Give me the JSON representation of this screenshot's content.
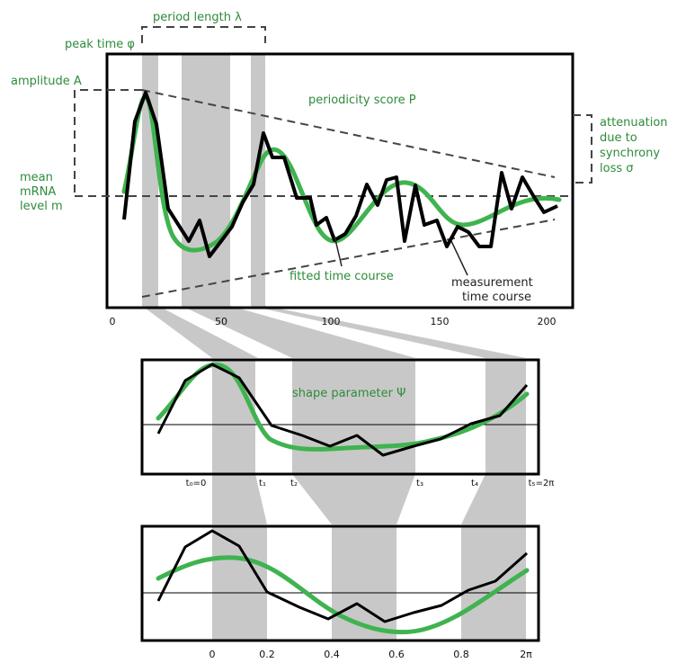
{
  "colors": {
    "fit": "#3fb34f",
    "measurement": "#000000",
    "band": "#c8c8c8",
    "label": "#2e8b3a",
    "dash": "#444444"
  },
  "labels": {
    "period_length": "period length λ",
    "peak_time": "peak time φ",
    "amplitude": "amplitude A",
    "mean_level": [
      "mean",
      "mRNA",
      "level m"
    ],
    "periodicity_score": "periodicity score P",
    "attenuation": [
      "attenuation",
      "due to",
      "synchrony",
      "loss σ"
    ],
    "fitted": "fitted time course",
    "measurement": [
      "measurement",
      "time course"
    ],
    "shape_parameter": "shape parameter Ψ"
  },
  "top_axis": {
    "ticks": [
      "0",
      "50",
      "100",
      "150",
      "200"
    ]
  },
  "middle_axis": {
    "ticks": [
      "t₀=0",
      "t₁",
      "t₂",
      "t₃",
      "t₄",
      "t₅=2π"
    ]
  },
  "bottom_axis": {
    "ticks": [
      "0",
      "0.2",
      "0.4",
      "0.6",
      "0.8",
      "2π"
    ]
  }
}
